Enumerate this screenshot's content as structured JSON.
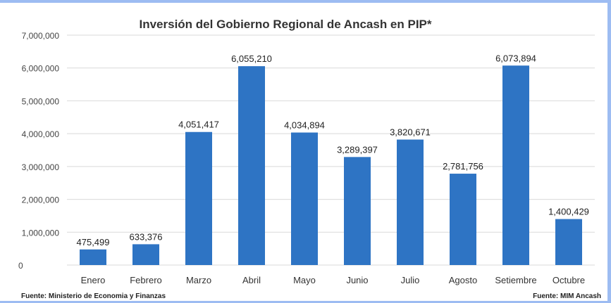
{
  "chart_data": {
    "type": "bar",
    "title": "Inversión del  Gobierno Regional de Ancash en PIP*",
    "categories": [
      "Enero",
      "Febrero",
      "Marzo",
      "Abril",
      "Mayo",
      "Junio",
      "Julio",
      "Agosto",
      "Setiembre",
      "Octubre"
    ],
    "values": [
      475499,
      633376,
      4051417,
      6055210,
      4034894,
      3289397,
      3820671,
      2781756,
      6073894,
      1400429
    ],
    "data_labels": [
      "475,499",
      "633,376",
      "4,051,417",
      "6,055,210",
      "4,034,894",
      "3,289,397",
      "3,820,671",
      "2,781,756",
      "6,073,894",
      "1,400,429"
    ],
    "yticks": [
      "0",
      "1,000,000",
      "2,000,000",
      "3,000,000",
      "4,000,000",
      "5,000,000",
      "6,000,000",
      "7,000,000"
    ],
    "ylim": [
      0,
      7000000
    ],
    "grid": true,
    "bar_color": "#2e74c4",
    "xlabel": "",
    "ylabel": ""
  },
  "footer": {
    "source_left": "Fuente: Ministerio de Economia y Finanzas",
    "source_right": "Fuente: MIM Ancash"
  }
}
